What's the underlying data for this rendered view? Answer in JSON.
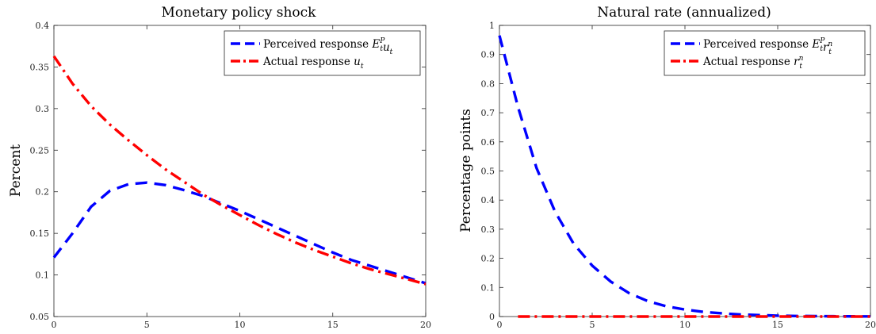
{
  "chart_data": [
    {
      "type": "line",
      "title": "Monetary policy shock",
      "xlabel": "",
      "ylabel": "Percent",
      "xlim": [
        0,
        20
      ],
      "ylim": [
        0.05,
        0.4
      ],
      "xticks": [
        "0",
        "5",
        "10",
        "15",
        "20"
      ],
      "yticks": [
        "0.05",
        "0.1",
        "0.15",
        "0.2",
        "0.25",
        "0.3",
        "0.35",
        "0.4"
      ],
      "grid": false,
      "legend_position": "top-right",
      "series": [
        {
          "name": "Perceived response E_t^P u_t",
          "legend_label": "Perceived response",
          "legend_math_base": "E",
          "legend_math_sub": "t",
          "legend_math_sup": "P",
          "legend_math_var": "u",
          "legend_math_var_sub": "t",
          "legend_math_var_sup": "",
          "color": "#0000ff",
          "style": "dashed",
          "x": [
            0,
            1,
            2,
            3,
            4,
            5,
            6,
            7,
            8,
            9,
            10,
            11,
            12,
            13,
            14,
            15,
            16,
            17,
            18,
            19,
            20
          ],
          "y": [
            0.121,
            0.15,
            0.182,
            0.201,
            0.209,
            0.211,
            0.208,
            0.202,
            0.195,
            0.186,
            0.177,
            0.167,
            0.157,
            0.147,
            0.137,
            0.127,
            0.118,
            0.111,
            0.104,
            0.097,
            0.09
          ]
        },
        {
          "name": "Actual response u_t",
          "legend_label": "Actual response",
          "legend_math_base": "",
          "legend_math_sub": "",
          "legend_math_sup": "",
          "legend_math_var": "u",
          "legend_math_var_sub": "t",
          "legend_math_var_sup": "",
          "color": "#ff0000",
          "style": "dash-dot",
          "x": [
            0,
            1,
            2,
            3,
            4,
            5,
            6,
            7,
            8,
            9,
            10,
            11,
            12,
            13,
            14,
            15,
            16,
            17,
            18,
            19,
            20
          ],
          "y": [
            0.363,
            0.33,
            0.303,
            0.281,
            0.262,
            0.244,
            0.227,
            0.212,
            0.197,
            0.184,
            0.172,
            0.16,
            0.149,
            0.139,
            0.13,
            0.122,
            0.114,
            0.107,
            0.101,
            0.095,
            0.089
          ]
        }
      ]
    },
    {
      "type": "line",
      "title": "Natural rate (annualized)",
      "xlabel": "",
      "ylabel": "Percentage points",
      "xlim": [
        0,
        20
      ],
      "ylim": [
        0,
        1
      ],
      "xticks": [
        "0",
        "5",
        "10",
        "15",
        "20"
      ],
      "yticks": [
        "0",
        "0.1",
        "0.2",
        "0.3",
        "0.4",
        "0.5",
        "0.6",
        "0.7",
        "0.8",
        "0.9",
        "1"
      ],
      "grid": false,
      "legend_position": "top-right",
      "series": [
        {
          "name": "Perceived response E_t^P r_t^n",
          "legend_label": "Perceived response",
          "legend_math_base": "E",
          "legend_math_sub": "t",
          "legend_math_sup": "P",
          "legend_math_var": "r",
          "legend_math_var_sub": "t",
          "legend_math_var_sup": "n",
          "color": "#0000ff",
          "style": "dashed",
          "x": [
            0,
            1,
            2,
            3,
            4,
            5,
            6,
            7,
            8,
            9,
            10,
            11,
            12,
            13,
            14,
            15,
            16,
            17,
            18,
            19,
            20
          ],
          "y": [
            0.965,
            0.72,
            0.51,
            0.36,
            0.25,
            0.175,
            0.12,
            0.08,
            0.053,
            0.035,
            0.024,
            0.016,
            0.011,
            0.007,
            0.005,
            0.003,
            0.002,
            0.0015,
            0.001,
            0.0007,
            0.0005
          ]
        },
        {
          "name": "Actual response r_t^n",
          "legend_label": "Actual response",
          "legend_math_base": "",
          "legend_math_sub": "",
          "legend_math_sup": "",
          "legend_math_var": "r",
          "legend_math_var_sub": "t",
          "legend_math_var_sup": "n",
          "color": "#ff0000",
          "style": "dash-dot",
          "x": [
            1,
            2,
            3,
            4,
            5,
            6,
            7,
            8,
            9,
            10,
            11,
            12,
            13,
            14,
            15,
            16,
            17,
            18,
            19,
            20
          ],
          "y": [
            0,
            0,
            0,
            0,
            0,
            0,
            0,
            0,
            0,
            0,
            0,
            0,
            0,
            0,
            0,
            0,
            0,
            0,
            0,
            0
          ]
        }
      ]
    }
  ]
}
